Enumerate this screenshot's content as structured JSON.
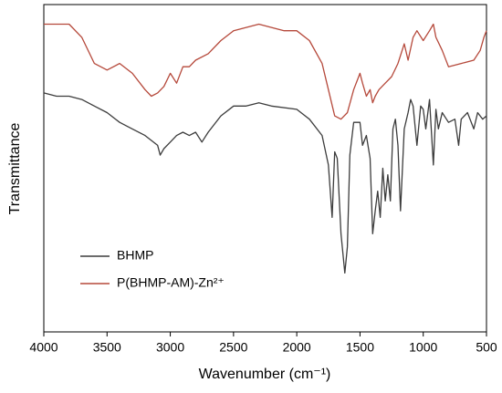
{
  "chart_data": {
    "type": "line",
    "xlabel": "Wavenumber (cm⁻¹)",
    "ylabel": "Transmittance",
    "xlim": [
      4000,
      500
    ],
    "xticks": [
      4000,
      3500,
      3000,
      2500,
      2000,
      1500,
      1000,
      500
    ],
    "ylim": [
      0,
      100
    ],
    "legend": "lower left",
    "series": [
      {
        "name": "BHMP",
        "color": "#3c3c3c",
        "x": [
          4000,
          3900,
          3800,
          3700,
          3600,
          3500,
          3400,
          3300,
          3200,
          3100,
          3080,
          3050,
          3000,
          2950,
          2900,
          2850,
          2800,
          2750,
          2700,
          2600,
          2500,
          2400,
          2300,
          2200,
          2000,
          1900,
          1800,
          1750,
          1720,
          1700,
          1680,
          1650,
          1620,
          1600,
          1580,
          1550,
          1500,
          1480,
          1450,
          1420,
          1400,
          1380,
          1360,
          1340,
          1320,
          1300,
          1280,
          1260,
          1240,
          1220,
          1200,
          1180,
          1150,
          1120,
          1100,
          1080,
          1050,
          1020,
          1000,
          980,
          950,
          920,
          900,
          880,
          850,
          800,
          750,
          720,
          700,
          650,
          600,
          570,
          530,
          500
        ],
        "values": [
          73,
          72,
          72,
          71,
          69,
          67,
          64,
          62,
          60,
          57,
          54,
          56,
          58,
          60,
          61,
          60,
          61,
          58,
          61,
          66,
          69,
          69,
          70,
          69,
          68,
          65,
          60,
          51,
          35,
          55,
          53,
          30,
          18,
          26,
          54,
          64,
          64,
          57,
          60,
          53,
          30,
          37,
          43,
          35,
          50,
          40,
          48,
          40,
          62,
          65,
          57,
          37,
          62,
          67,
          71,
          69,
          57,
          69,
          68,
          62,
          71,
          51,
          68,
          62,
          67,
          64,
          65,
          57,
          65,
          67,
          62,
          67,
          65,
          66
        ]
      },
      {
        "name": "P(BHMP-AM)-Zn²⁺",
        "color": "#b5483a",
        "x": [
          4000,
          3800,
          3700,
          3600,
          3500,
          3400,
          3300,
          3200,
          3150,
          3100,
          3050,
          3000,
          2950,
          2900,
          2850,
          2800,
          2700,
          2600,
          2500,
          2400,
          2300,
          2200,
          2100,
          2000,
          1900,
          1800,
          1750,
          1700,
          1650,
          1600,
          1550,
          1500,
          1480,
          1450,
          1420,
          1400,
          1380,
          1350,
          1300,
          1250,
          1200,
          1150,
          1120,
          1080,
          1050,
          1000,
          950,
          920,
          900,
          850,
          800,
          700,
          600,
          550,
          520,
          500
        ],
        "values": [
          94,
          94,
          90,
          82,
          80,
          82,
          79,
          74,
          72,
          73,
          75,
          79,
          76,
          81,
          81,
          83,
          85,
          89,
          92,
          93,
          94,
          93,
          92,
          92,
          89,
          82,
          74,
          66,
          65,
          67,
          74,
          79,
          76,
          72,
          74,
          70,
          72,
          74,
          76,
          78,
          82,
          88,
          83,
          90,
          92,
          89,
          92,
          94,
          90,
          86,
          81,
          82,
          83,
          86,
          90,
          92
        ]
      }
    ]
  }
}
